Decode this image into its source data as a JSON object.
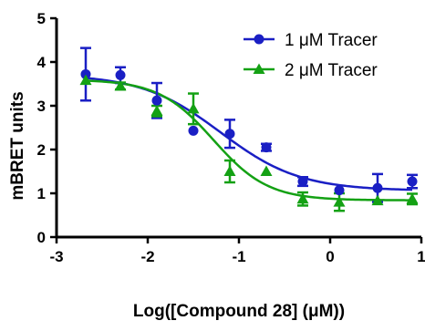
{
  "chart_data": {
    "type": "scatter",
    "xlabel": "Log([Compound 28] (μM))",
    "ylabel": "mBRET units",
    "xlim": [
      -3,
      1
    ],
    "ylim": [
      0,
      5
    ],
    "x_ticks": [
      -3,
      -2,
      -1,
      0,
      1
    ],
    "y_ticks": [
      0,
      1,
      2,
      3,
      4,
      5
    ],
    "x_tick_labels": [
      "-3",
      "-2",
      "-1",
      "0",
      "1"
    ],
    "y_tick_labels": [
      "0",
      "1",
      "2",
      "3",
      "4",
      "5"
    ],
    "grid": false,
    "legend_position": "top-right",
    "series": [
      {
        "name": "1 μM Tracer",
        "color": "#1a1fc4",
        "marker": "circle",
        "fit": {
          "top": 3.72,
          "bottom": 1.06,
          "logEC50": -1.2,
          "hill": -1.0
        },
        "points": [
          {
            "x": -2.68,
            "y": 3.72,
            "err": 0.6
          },
          {
            "x": -2.3,
            "y": 3.7,
            "err": 0.18
          },
          {
            "x": -1.9,
            "y": 3.12,
            "err": 0.4
          },
          {
            "x": -1.5,
            "y": 2.43,
            "err": 0.0
          },
          {
            "x": -1.1,
            "y": 2.36,
            "err": 0.32
          },
          {
            "x": -0.7,
            "y": 2.05,
            "err": 0.08
          },
          {
            "x": -0.3,
            "y": 1.27,
            "err": 0.1
          },
          {
            "x": 0.1,
            "y": 1.07,
            "err": 0.0
          },
          {
            "x": 0.52,
            "y": 1.12,
            "err": 0.32
          },
          {
            "x": 0.9,
            "y": 1.27,
            "err": 0.15
          }
        ]
      },
      {
        "name": "2 μM Tracer",
        "color": "#14a114",
        "marker": "triangle",
        "fit": {
          "top": 3.6,
          "bottom": 0.84,
          "logEC50": -1.28,
          "hill": -1.45
        },
        "points": [
          {
            "x": -2.68,
            "y": 3.58,
            "err": 0.0
          },
          {
            "x": -2.3,
            "y": 3.45,
            "err": 0.08
          },
          {
            "x": -1.9,
            "y": 2.88,
            "err": 0.12
          },
          {
            "x": -1.5,
            "y": 2.93,
            "err": 0.35
          },
          {
            "x": -1.1,
            "y": 1.5,
            "err": 0.25
          },
          {
            "x": -0.7,
            "y": 1.5,
            "err": 0.0
          },
          {
            "x": -0.3,
            "y": 0.87,
            "err": 0.15
          },
          {
            "x": 0.1,
            "y": 0.8,
            "err": 0.2
          },
          {
            "x": 0.52,
            "y": 0.83,
            "err": 0.0
          },
          {
            "x": 0.9,
            "y": 0.87,
            "err": 0.12
          }
        ]
      }
    ]
  }
}
